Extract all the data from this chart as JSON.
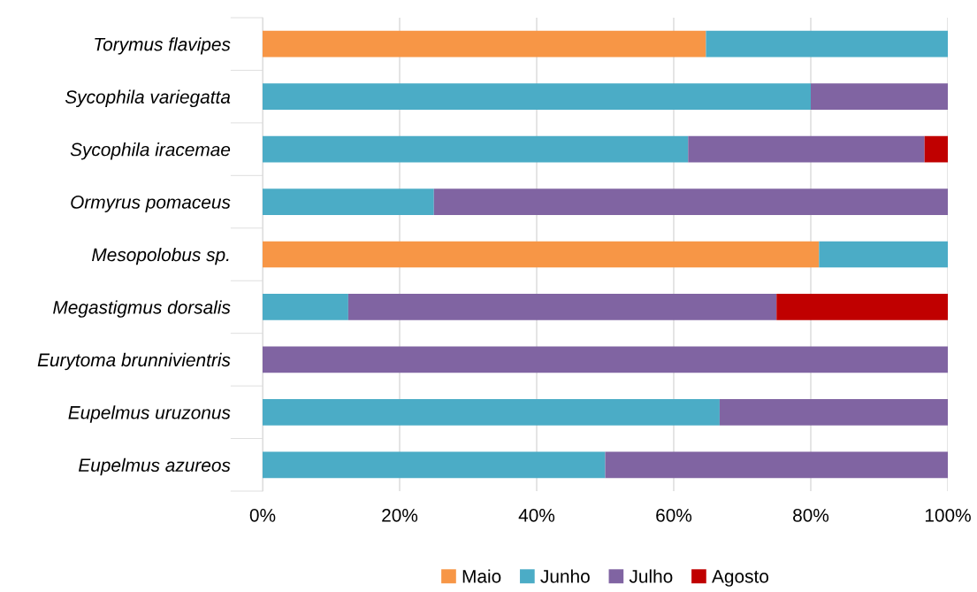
{
  "chart_data": {
    "type": "bar",
    "orientation": "horizontal",
    "stacked": true,
    "categories": [
      "Torymus flavipes",
      "Sycophila variegatta",
      "Sycophila iracemae",
      "Ormyrus pomaceus",
      "Mesopolobus sp.",
      "Megastigmus dorsalis",
      "Eurytoma brunnivientris",
      "Eupelmus uruzonus",
      "Eupelmus azureos"
    ],
    "series": [
      {
        "name": "Maio",
        "color": "#f79646",
        "values": [
          64.7,
          null,
          null,
          null,
          81.2,
          null,
          null,
          null,
          null
        ]
      },
      {
        "name": "Junho",
        "color": "#4bacc6",
        "values": [
          35.3,
          80,
          62.1,
          25,
          18.8,
          12.5,
          null,
          66.7,
          50
        ]
      },
      {
        "name": "Julho",
        "color": "#8064a2",
        "values": [
          null,
          20,
          34.5,
          75,
          null,
          62.5,
          100,
          33.3,
          50
        ]
      },
      {
        "name": "Agosto",
        "color": "#c00000",
        "values": [
          null,
          null,
          3.4,
          null,
          null,
          25,
          null,
          null,
          null
        ]
      }
    ],
    "xlim": [
      0,
      100
    ],
    "xticks": [
      {
        "value": 0,
        "label": "0%"
      },
      {
        "value": 20,
        "label": "20%"
      },
      {
        "value": 40,
        "label": "40%"
      },
      {
        "value": 60,
        "label": "60%"
      },
      {
        "value": 80,
        "label": "80%"
      },
      {
        "value": 100,
        "label": "100%"
      }
    ],
    "grid": "x",
    "legend": "bottom"
  }
}
